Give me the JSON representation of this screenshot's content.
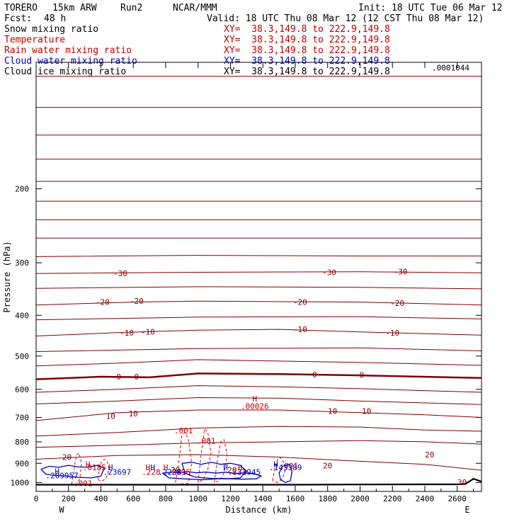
{
  "header": {
    "model": "TORERO",
    "resolution": "15km ARW",
    "run": "Run2",
    "org": "NCAR/MMM",
    "init": "Init: 18 UTC Tue 06 Mar 12",
    "fcst_label": "Fcst:",
    "fcst_value": "48 h",
    "valid": "Valid: 18 UTC Thu 08 Mar 12 (12 CST Thu 08 Mar 12)"
  },
  "legend": [
    {
      "name": "Snow mixing ratio",
      "xy": "XY=  38.3,149.8 to 222.9,149.8",
      "name_color": "#000000",
      "xy_color": "#c00000"
    },
    {
      "name": "Temperature",
      "xy": "XY=  38.3,149.8 to 222.9,149.8",
      "name_color": "#c00000",
      "xy_color": "#c00000"
    },
    {
      "name": "Rain water mixing ratio",
      "xy": "XY=  38.3,149.8 to 222.9,149.8",
      "name_color": "#c00000",
      "xy_color": "#c00000"
    },
    {
      "name": "Cloud water mixing ratio",
      "xy": "XY=  38.3,149.8 to 222.9,149.8",
      "name_color": "#0000c0",
      "xy_color": "#0000c0"
    },
    {
      "name": "Cloud ice mixing ratio",
      "xy": "XY=  38.3,149.8 to 222.9,149.8",
      "name_color": "#000000",
      "xy_color": "#000000"
    }
  ],
  "chart_data": {
    "type": "line",
    "xlabel": "Distance (km)",
    "ylabel": "Pressure (hPa)",
    "xlim": [
      0,
      2750
    ],
    "ylim": [
      1050,
      100
    ],
    "y_scale": "log",
    "x_ticks": [
      0,
      200,
      400,
      600,
      800,
      1000,
      1200,
      1400,
      1600,
      1800,
      2000,
      2200,
      2400,
      2600
    ],
    "y_ticks": [
      200,
      300,
      400,
      500,
      600,
      700,
      800,
      900,
      1000
    ],
    "x_end_labels": {
      "left": "W",
      "right": "E"
    },
    "colors": {
      "temperature": "#800000",
      "rain": "#e00000",
      "cloud_water": "#0000c0",
      "ground": "#000000"
    },
    "isotherms": [
      {
        "label": "",
        "x": [
          0,
          2750
        ],
        "p": [
          108,
          108
        ]
      },
      {
        "label": "",
        "x": [
          0,
          2750
        ],
        "p": [
          128,
          128
        ]
      },
      {
        "label": "",
        "x": [
          0,
          2750
        ],
        "p": [
          149,
          149
        ]
      },
      {
        "label": "",
        "x": [
          0,
          2750
        ],
        "p": [
          170,
          170
        ]
      },
      {
        "label": "",
        "x": [
          0,
          2750
        ],
        "p": [
          192,
          192
        ]
      },
      {
        "label": "",
        "x": [
          0,
          2750
        ],
        "p": [
          214,
          214
        ]
      },
      {
        "label": "",
        "x": [
          0,
          2750
        ],
        "p": [
          237,
          237
        ]
      },
      {
        "label": "",
        "x": [
          0,
          2750
        ],
        "p": [
          262,
          262
        ]
      },
      {
        "label": "",
        "x": [
          0,
          1000,
          2000,
          2750
        ],
        "p": [
          290,
          288,
          289,
          289
        ]
      },
      {
        "label": "-30",
        "x": [
          0,
          1000,
          2000,
          2750
        ],
        "p": [
          318,
          316,
          315,
          317
        ]
      },
      {
        "label": "",
        "x": [
          0,
          1000,
          2000,
          2750
        ],
        "p": [
          345,
          342,
          343,
          346
        ]
      },
      {
        "label": "-20",
        "x": [
          0,
          600,
          1000,
          2000,
          2750
        ],
        "p": [
          378,
          372,
          370,
          372,
          378
        ]
      },
      {
        "label": "",
        "x": [
          0,
          1000,
          2000,
          2750
        ],
        "p": [
          410,
          404,
          403,
          408
        ]
      },
      {
        "label": "-10",
        "x": [
          0,
          500,
          1000,
          1500,
          2000,
          2750
        ],
        "p": [
          448,
          440,
          434,
          432,
          438,
          446
        ]
      },
      {
        "label": "",
        "x": [
          0,
          1000,
          2000,
          2750
        ],
        "p": [
          488,
          480,
          478,
          486
        ]
      },
      {
        "label": "",
        "x": [
          0,
          500,
          1000,
          1500,
          2000,
          2750
        ],
        "p": [
          528,
          520,
          510,
          514,
          518,
          526
        ]
      },
      {
        "label": "0",
        "x": [
          0,
          400,
          700,
          1000,
          1500,
          2000,
          2750
        ],
        "p": [
          568,
          560,
          562,
          550,
          552,
          556,
          564
        ]
      },
      {
        "label": "",
        "x": [
          0,
          500,
          1000,
          1500,
          2000,
          2750
        ],
        "p": [
          610,
          600,
          588,
          592,
          598,
          610
        ]
      },
      {
        "label": "",
        "x": [
          0,
          500,
          1000,
          1500,
          2000,
          2750
        ],
        "p": [
          650,
          640,
          628,
          630,
          640,
          652
        ]
      },
      {
        "label": "10",
        "x": [
          0,
          200,
          500,
          1000,
          1500,
          2000,
          2400,
          2750
        ],
        "p": [
          712,
          700,
          682,
          672,
          672,
          682,
          690,
          700
        ]
      },
      {
        "label": "",
        "x": [
          0,
          500,
          1000,
          1500,
          2000,
          2400,
          2750
        ],
        "p": [
          775,
          760,
          742,
          735,
          738,
          750,
          755
        ]
      },
      {
        "label": "",
        "x": [
          0,
          500,
          1000,
          1500,
          2000,
          2400,
          2750
        ],
        "p": [
          825,
          815,
          805,
          800,
          795,
          800,
          810
        ]
      },
      {
        "label": "20",
        "x": [
          0,
          500,
          1000,
          1500,
          2000,
          2400,
          2750
        ],
        "p": [
          880,
          862,
          858,
          870,
          890,
          905,
          935
        ]
      }
    ],
    "zero_isotherm_index": 16,
    "rain_contours": [
      {
        "x": [
          860,
          880,
          900,
          920,
          940,
          960,
          940,
          880
        ],
        "p": [
          1000,
          900,
          770,
          760,
          790,
          900,
          1005,
          1008
        ]
      },
      {
        "x": [
          1000,
          1020,
          1040,
          1060,
          1080,
          1060,
          1030,
          1000
        ],
        "p": [
          1000,
          850,
          745,
          760,
          850,
          930,
          985,
          1000
        ]
      },
      {
        "x": [
          1100,
          1120,
          1140,
          1160,
          1180,
          1160,
          1130,
          1100
        ],
        "p": [
          1000,
          880,
          800,
          790,
          860,
          950,
          990,
          1000
        ]
      },
      {
        "x": [
          220,
          240,
          250,
          265,
          280,
          270,
          245,
          220
        ],
        "p": [
          1010,
          900,
          860,
          850,
          900,
          980,
          1010,
          1010
        ]
      },
      {
        "x": [
          380,
          400,
          420,
          440,
          450,
          430,
          400,
          380
        ],
        "p": [
          980,
          900,
          880,
          890,
          930,
          980,
          995,
          980
        ]
      },
      {
        "x": [
          1460,
          1480,
          1500,
          1520,
          1540,
          1520,
          1490,
          1460
        ],
        "p": [
          990,
          900,
          870,
          880,
          930,
          980,
          1000,
          990
        ]
      }
    ],
    "cloud_water_contours": [
      {
        "x": [
          30,
          80,
          140,
          200,
          260,
          320,
          380,
          420,
          400,
          340,
          260,
          180,
          110,
          60,
          30
        ],
        "p": [
          930,
          915,
          920,
          910,
          918,
          920,
          910,
          925,
          965,
          975,
          972,
          965,
          962,
          955,
          930
        ]
      },
      {
        "x": [
          900,
          960,
          1020,
          1080,
          1140,
          1200,
          1260,
          1300,
          1260,
          1180,
          1080,
          980,
          920,
          900
        ],
        "p": [
          900,
          895,
          905,
          895,
          905,
          900,
          910,
          940,
          975,
          980,
          978,
          970,
          950,
          900
        ]
      },
      {
        "x": [
          780,
          840,
          880,
          930,
          990,
          1050,
          1110,
          1170,
          1230,
          1290,
          1350,
          1390,
          1360,
          1270,
          1150,
          1030,
          910,
          820,
          780
        ],
        "p": [
          950,
          945,
          948,
          942,
          948,
          944,
          950,
          945,
          952,
          948,
          955,
          965,
          980,
          982,
          978,
          985,
          980,
          975,
          950
        ]
      },
      {
        "x": [
          1520,
          1560,
          1580,
          1570,
          1540,
          1510,
          1500,
          1520
        ],
        "p": [
          915,
          905,
          940,
          990,
          1000,
          985,
          950,
          915
        ]
      }
    ],
    "ground": {
      "x": [
        0,
        1600,
        2000,
        2400,
        2600,
        2650,
        2700,
        2750
      ],
      "p": [
        1012,
        1012,
        1011,
        1010,
        1010,
        1008,
        980,
        995
      ]
    },
    "annotations": [
      {
        "text": "-30",
        "x": 520,
        "p": 318,
        "color": "#800000"
      },
      {
        "text": "-30",
        "x": 1810,
        "p": 316,
        "color": "#800000"
      },
      {
        "text": "-30",
        "x": 2250,
        "p": 315,
        "color": "#800000"
      },
      {
        "text": "-20",
        "x": 410,
        "p": 372,
        "color": "#800000"
      },
      {
        "text": "-20",
        "x": 620,
        "p": 370,
        "color": "#800000"
      },
      {
        "text": "-20",
        "x": 1630,
        "p": 372,
        "color": "#800000"
      },
      {
        "text": "-20",
        "x": 2230,
        "p": 374,
        "color": "#800000"
      },
      {
        "text": "-10",
        "x": 560,
        "p": 440,
        "color": "#800000"
      },
      {
        "text": "-10",
        "x": 690,
        "p": 438,
        "color": "#800000"
      },
      {
        "text": "-10",
        "x": 1630,
        "p": 432,
        "color": "#800000"
      },
      {
        "text": "-10",
        "x": 2200,
        "p": 440,
        "color": "#800000"
      },
      {
        "text": "0",
        "x": 510,
        "p": 560,
        "color": "#800000"
      },
      {
        "text": "0",
        "x": 620,
        "p": 560,
        "color": "#800000"
      },
      {
        "text": "0",
        "x": 1720,
        "p": 553,
        "color": "#800000"
      },
      {
        "text": "0",
        "x": 2010,
        "p": 555,
        "color": "#800000"
      },
      {
        "text": "10",
        "x": 460,
        "p": 695,
        "color": "#800000"
      },
      {
        "text": "10",
        "x": 600,
        "p": 685,
        "color": "#800000"
      },
      {
        "text": "10",
        "x": 1830,
        "p": 676,
        "color": "#800000"
      },
      {
        "text": "10",
        "x": 2040,
        "p": 676,
        "color": "#800000"
      },
      {
        "text": "20",
        "x": 190,
        "p": 870,
        "color": "#800000"
      },
      {
        "text": "20",
        "x": 2430,
        "p": 858,
        "color": "#800000"
      },
      {
        "text": "20",
        "x": 1800,
        "p": 912,
        "color": "#800000"
      },
      {
        "text": "20",
        "x": 860,
        "p": 932,
        "color": "#800000"
      },
      {
        "text": "20",
        "x": 1210,
        "p": 932,
        "color": "#800000"
      },
      {
        "text": "30",
        "x": 2630,
        "p": 998,
        "color": "#800000"
      },
      {
        "text": "H",
        "x": 1350,
        "p": 632,
        "color": "#c00000"
      },
      {
        "text": ".00026",
        "x": 1350,
        "p": 658,
        "color": "#c00000"
      },
      {
        "text": ".001",
        "x": 910,
        "p": 752,
        "color": "#c00000"
      },
      {
        "text": ".001",
        "x": 1050,
        "p": 795,
        "color": "#c00000"
      },
      {
        "text": ".001",
        "x": 290,
        "p": 1005,
        "color": "#c00000"
      },
      {
        "text": ".001",
        "x": 1560,
        "p": 912,
        "color": "#c00000"
      },
      {
        "text": "H",
        "x": 320,
        "p": 904,
        "color": "#c00000"
      },
      {
        "text": ".0185",
        "x": 360,
        "p": 920,
        "color": "#c00000"
      },
      {
        "text": "H",
        "x": 690,
        "p": 920,
        "color": "#c00000"
      },
      {
        "text": ".228",
        "x": 710,
        "p": 944,
        "color": "#c00000"
      },
      {
        "text": "H",
        "x": 800,
        "p": 920,
        "color": "#c00000"
      },
      {
        "text": ".2396",
        "x": 880,
        "p": 944,
        "color": "#c00000"
      },
      {
        "text": "H",
        "x": 1260,
        "p": 920,
        "color": "#c00000"
      },
      {
        "text": ".331",
        "x": 1240,
        "p": 944,
        "color": "#c00000"
      },
      {
        "text": "H",
        "x": 460,
        "p": 920,
        "color": "#0000c0"
      },
      {
        "text": ".23697",
        "x": 500,
        "p": 944,
        "color": "#0000c0"
      },
      {
        "text": "H",
        "x": 130,
        "p": 940,
        "color": "#0000c0"
      },
      {
        "text": ".209957",
        "x": 160,
        "p": 962,
        "color": "#0000c0"
      },
      {
        "text": "H",
        "x": 720,
        "p": 920,
        "color": "#0000c0"
      },
      {
        "text": ".22381",
        "x": 840,
        "p": 944,
        "color": "#0000c0"
      },
      {
        "text": "H",
        "x": 1170,
        "p": 920,
        "color": "#0000c0"
      },
      {
        "text": ".33945",
        "x": 1300,
        "p": 944,
        "color": "#0000c0"
      },
      {
        "text": "H",
        "x": 1480,
        "p": 904,
        "color": "#0000c0"
      },
      {
        "text": ".143389",
        "x": 1540,
        "p": 920,
        "color": "#0000c0"
      },
      {
        "text": ".0001044",
        "x": 2560,
        "p": 103,
        "color": "#000000"
      }
    ]
  }
}
